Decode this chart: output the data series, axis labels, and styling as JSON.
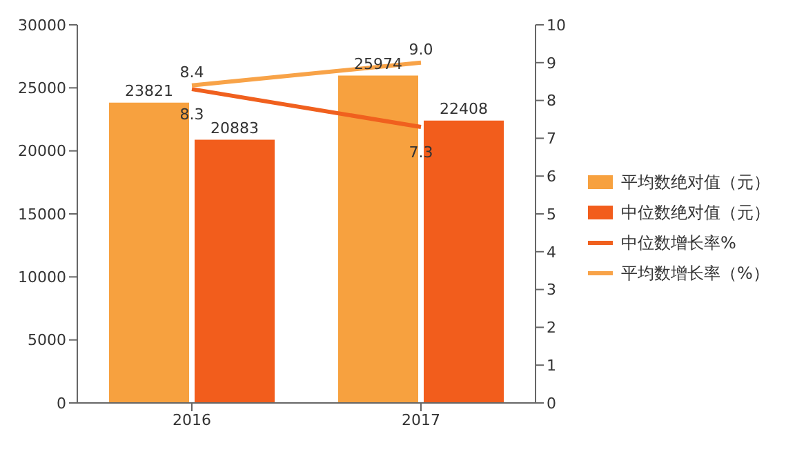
{
  "chart_data": {
    "type": "bar",
    "categories": [
      "2016",
      "2017"
    ],
    "series": [
      {
        "name": "平均数绝对值（元）",
        "color": "#f7a13f",
        "values": [
          23821,
          25974
        ]
      },
      {
        "name": "中位数绝对值（元）",
        "color": "#f25d1c",
        "values": [
          20883,
          22408
        ]
      },
      {
        "name": "中位数增长率%",
        "type": "line",
        "axis": "y2",
        "color": "#f0601e",
        "values": [
          8.3,
          7.3
        ],
        "value_labels": [
          "8.3",
          "7.3"
        ]
      },
      {
        "name": "平均数增长率（%）",
        "type": "line",
        "axis": "y2",
        "color": "#f8a348",
        "values": [
          8.4,
          9.0
        ],
        "value_labels": [
          "8.4",
          "9.0"
        ]
      }
    ],
    "ylim": [
      0,
      30000
    ],
    "yticks": [
      0,
      5000,
      10000,
      15000,
      20000,
      25000,
      30000
    ],
    "y2lim": [
      0,
      10
    ],
    "y2ticks": [
      0,
      1,
      2,
      3,
      4,
      5,
      6,
      7,
      8,
      9,
      10
    ],
    "data_labels": true,
    "legend": "right",
    "grid": false,
    "marker": "none"
  }
}
